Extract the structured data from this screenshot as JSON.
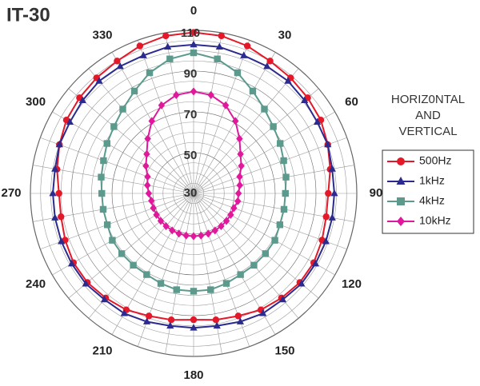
{
  "chart_data": {
    "type": "polar",
    "title": "IT-30",
    "theta": [
      0,
      10,
      20,
      30,
      40,
      50,
      60,
      70,
      80,
      90,
      100,
      110,
      120,
      130,
      140,
      150,
      160,
      170,
      180,
      190,
      200,
      210,
      220,
      230,
      240,
      250,
      260,
      270,
      280,
      290,
      300,
      310,
      320,
      330,
      340,
      350
    ],
    "thetaticks": [
      0,
      30,
      60,
      90,
      120,
      150,
      180,
      210,
      240,
      270,
      300,
      330
    ],
    "theta_grid_step": 10,
    "rlim": [
      30,
      110
    ],
    "rticks": [
      30,
      50,
      70,
      90,
      110
    ],
    "r_minor_grid": [
      35,
      40,
      45,
      55,
      60,
      65,
      75,
      80,
      85,
      95,
      100,
      105
    ],
    "legend_title": [
      "HORIZ0NTAL",
      "AND",
      "VERTICAL"
    ],
    "series": [
      {
        "name": "500Hz",
        "color": "#e3192a",
        "marker": "circle",
        "values": [
          109,
          108.5,
          107,
          105,
          104,
          103,
          102,
          100,
          98,
          96,
          96,
          97,
          98,
          98,
          97,
          96,
          94,
          93,
          92,
          93,
          94,
          96,
          97,
          98,
          98,
          97,
          96,
          96,
          98,
          100,
          102,
          103,
          104,
          105,
          107,
          108.5
        ]
      },
      {
        "name": "1kHz",
        "color": "#2b2b8f",
        "marker": "triangle",
        "values": [
          103,
          103,
          102,
          102,
          102,
          101,
          100,
          100,
          99,
          99,
          99,
          99,
          99,
          99,
          98,
          98,
          97,
          96,
          96,
          96,
          97,
          98,
          98,
          99,
          99,
          99,
          99,
          99,
          99,
          100,
          100,
          101,
          102,
          102,
          102,
          103
        ]
      },
      {
        "name": "4kHz",
        "color": "#5b9a8d",
        "marker": "square",
        "values": [
          99,
          97,
          93,
          88,
          84,
          81,
          79,
          77,
          76,
          75,
          75,
          75,
          76,
          76,
          76,
          76,
          77,
          78,
          78,
          78,
          77,
          76,
          76,
          76,
          76,
          75,
          75,
          75,
          76,
          77,
          79,
          81,
          84,
          88,
          93,
          97
        ]
      },
      {
        "name": "10kHz",
        "color": "#e0189c",
        "marker": "diamond",
        "values": [
          80,
          79,
          76,
          71,
          65,
          60,
          57,
          54,
          53,
          52,
          52,
          51,
          51,
          51,
          51,
          51,
          51,
          51,
          51,
          51,
          51,
          51,
          51,
          51,
          51,
          51,
          51,
          52,
          53,
          54,
          57,
          60,
          65,
          71,
          76,
          79
        ]
      }
    ]
  }
}
